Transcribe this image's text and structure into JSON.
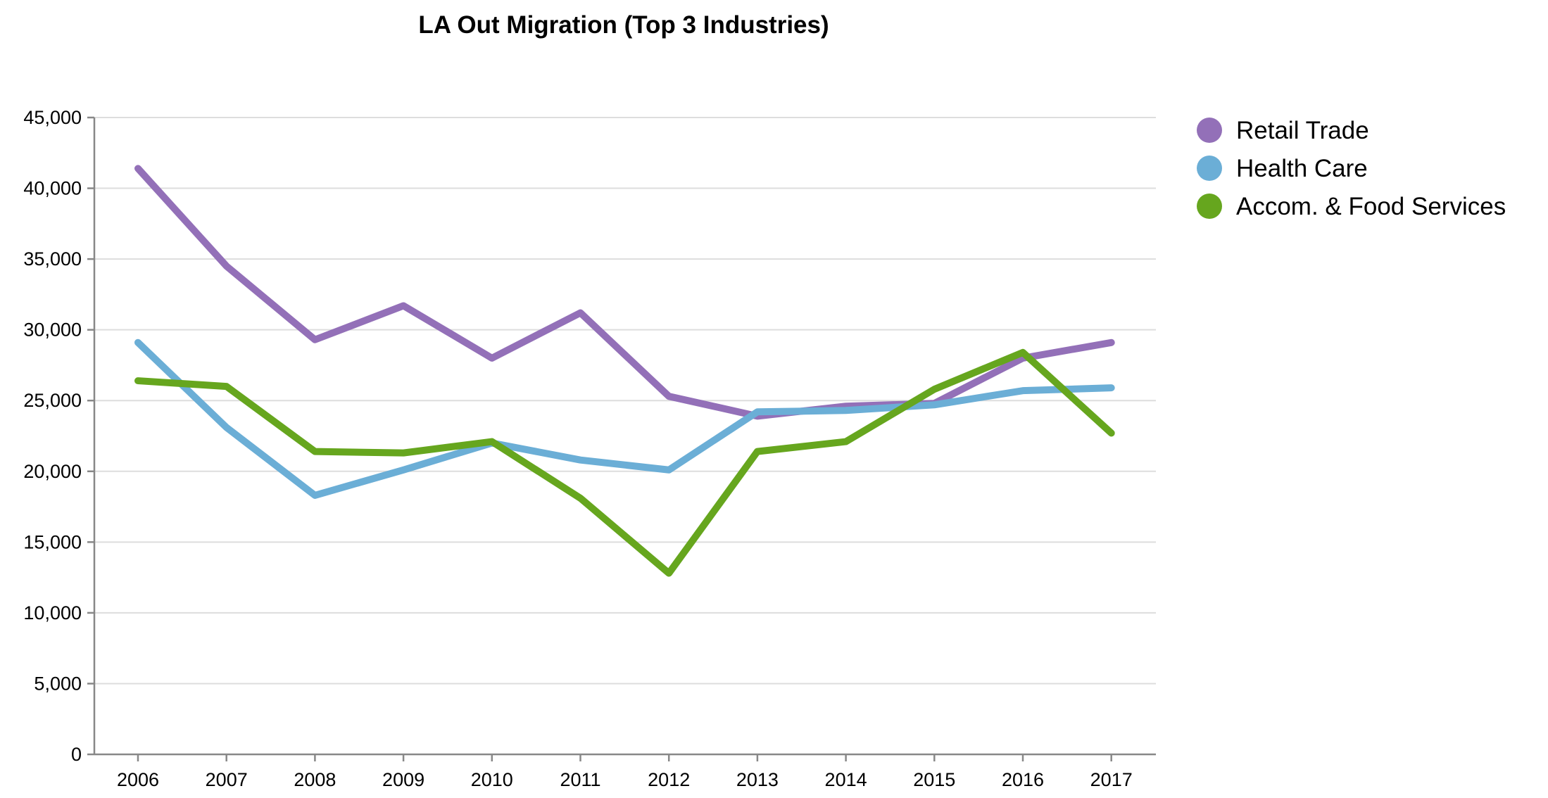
{
  "chart_data": {
    "type": "line",
    "title": "LA Out Migration (Top 3 Industries)",
    "xlabel": "",
    "ylabel": "",
    "x": [
      "2006",
      "2007",
      "2008",
      "2009",
      "2010",
      "2011",
      "2012",
      "2013",
      "2014",
      "2015",
      "2016",
      "2017"
    ],
    "ylim": [
      0,
      45000
    ],
    "yticks": [
      0,
      5000,
      10000,
      15000,
      20000,
      25000,
      30000,
      35000,
      40000,
      45000
    ],
    "ytick_labels": [
      "0",
      "5,000",
      "10,000",
      "15,000",
      "20,000",
      "25,000",
      "30,000",
      "35,000",
      "40,000",
      "45,000"
    ],
    "grid": true,
    "legend_position": "right",
    "series": [
      {
        "name": "Retail Trade",
        "color": "#9370b8",
        "values": [
          41400,
          34500,
          29300,
          31700,
          28000,
          31200,
          25300,
          23900,
          24600,
          24800,
          28000,
          29100
        ]
      },
      {
        "name": "Health Care",
        "color": "#6baed6",
        "values": [
          29100,
          23100,
          18300,
          20100,
          22000,
          20800,
          20100,
          24200,
          24300,
          24700,
          25700,
          25900
        ]
      },
      {
        "name": "Accom. & Food Services",
        "color": "#66a61e",
        "values": [
          26400,
          26000,
          21400,
          21300,
          22100,
          18100,
          12800,
          21400,
          22100,
          25800,
          28400,
          22700
        ]
      }
    ]
  }
}
